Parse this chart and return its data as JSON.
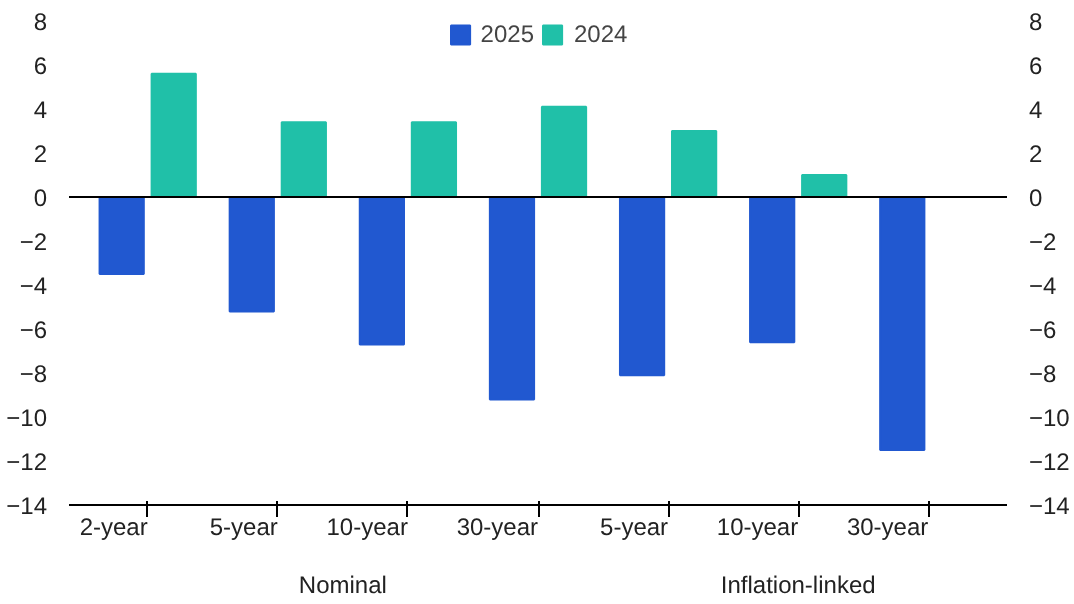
{
  "chart_data": {
    "type": "bar",
    "categories": [
      "2-year",
      "5-year",
      "10-year",
      "30-year",
      "5-year",
      "10-year",
      "30-year"
    ],
    "annotations": [
      "Nominal",
      "Inflation-linked"
    ],
    "series": [
      {
        "name": "2025",
        "color": "#2158d0",
        "values": [
          -3.5,
          -5.2,
          -6.7,
          -9.2,
          -8.1,
          -6.6,
          -11.5
        ]
      },
      {
        "name": "2024",
        "color": "#20c0a8",
        "values": [
          5.6,
          3.4,
          3.4,
          4.1,
          3.0,
          1.0,
          null
        ]
      }
    ],
    "ylim": [
      -14,
      8
    ],
    "yticks": [
      -14,
      -12,
      -10,
      -8,
      -6,
      -4,
      -2,
      0,
      2,
      4,
      6,
      8
    ],
    "y2lim": [
      -14,
      8
    ],
    "y2ticks": [
      -14,
      -12,
      -10,
      -8,
      -6,
      -4,
      -2,
      0,
      2,
      4,
      6,
      8
    ],
    "legend": "top"
  }
}
